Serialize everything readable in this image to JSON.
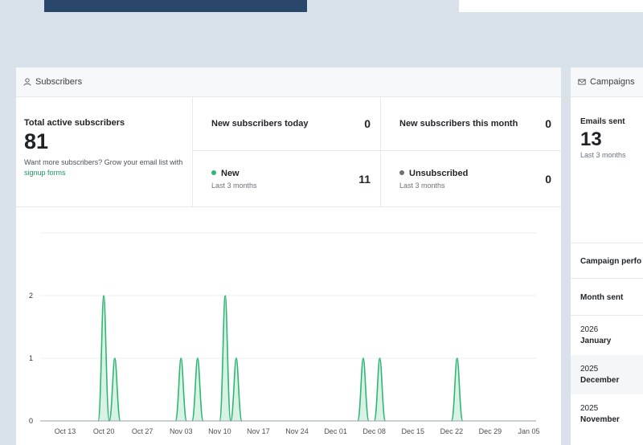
{
  "subscribers": {
    "header": "Subscribers",
    "total_label": "Total active subscribers",
    "total_value": "81",
    "hint_prefix": "Want more subscribers? Grow your email list with ",
    "hint_link": "signup forms",
    "today_label": "New subscribers today",
    "today_value": "0",
    "month_label": "New subscribers this month",
    "month_value": "0",
    "new_label": "New",
    "new_period": "Last 3 months",
    "new_value": "11",
    "unsub_label": "Unsubscribed",
    "unsub_period": "Last 3 months",
    "unsub_value": "0",
    "new_color": "#2fb673",
    "unsub_color": "#6b6f76"
  },
  "campaigns": {
    "header": "Campaigns",
    "emails_label": "Emails sent",
    "emails_value": "13",
    "emails_period": "Last 3 months",
    "perf_label": "Campaign perfo",
    "month_sent_label": "Month sent",
    "months": [
      {
        "year": "2026",
        "month": "January"
      },
      {
        "year": "2025",
        "month": "December"
      },
      {
        "year": "2025",
        "month": "November"
      }
    ]
  },
  "chart_data": {
    "type": "area",
    "series": [
      {
        "values": [
          {
            "date": "Oct 20",
            "value": 2
          },
          {
            "date": "Oct 22",
            "value": 1
          },
          {
            "date": "Nov 03",
            "value": 1
          },
          {
            "date": "Nov 06",
            "value": 1
          },
          {
            "date": "Nov 11",
            "value": 2
          },
          {
            "date": "Nov 13",
            "value": 1
          },
          {
            "date": "Dec 06",
            "value": 1
          },
          {
            "date": "Dec 09",
            "value": 1
          },
          {
            "date": "Dec 23",
            "value": 1
          }
        ]
      }
    ],
    "x_ticks": [
      "Oct 13",
      "Oct 20",
      "Oct 27",
      "Nov 03",
      "Nov 10",
      "Nov 17",
      "Nov 24",
      "Dec 01",
      "Dec 08",
      "Dec 15",
      "Dec 22",
      "Dec 29",
      "Jan 05"
    ],
    "y_ticks": [
      "0",
      "1",
      "2"
    ],
    "ylim": [
      0,
      3
    ],
    "grid": true,
    "color": "#2fb673"
  }
}
